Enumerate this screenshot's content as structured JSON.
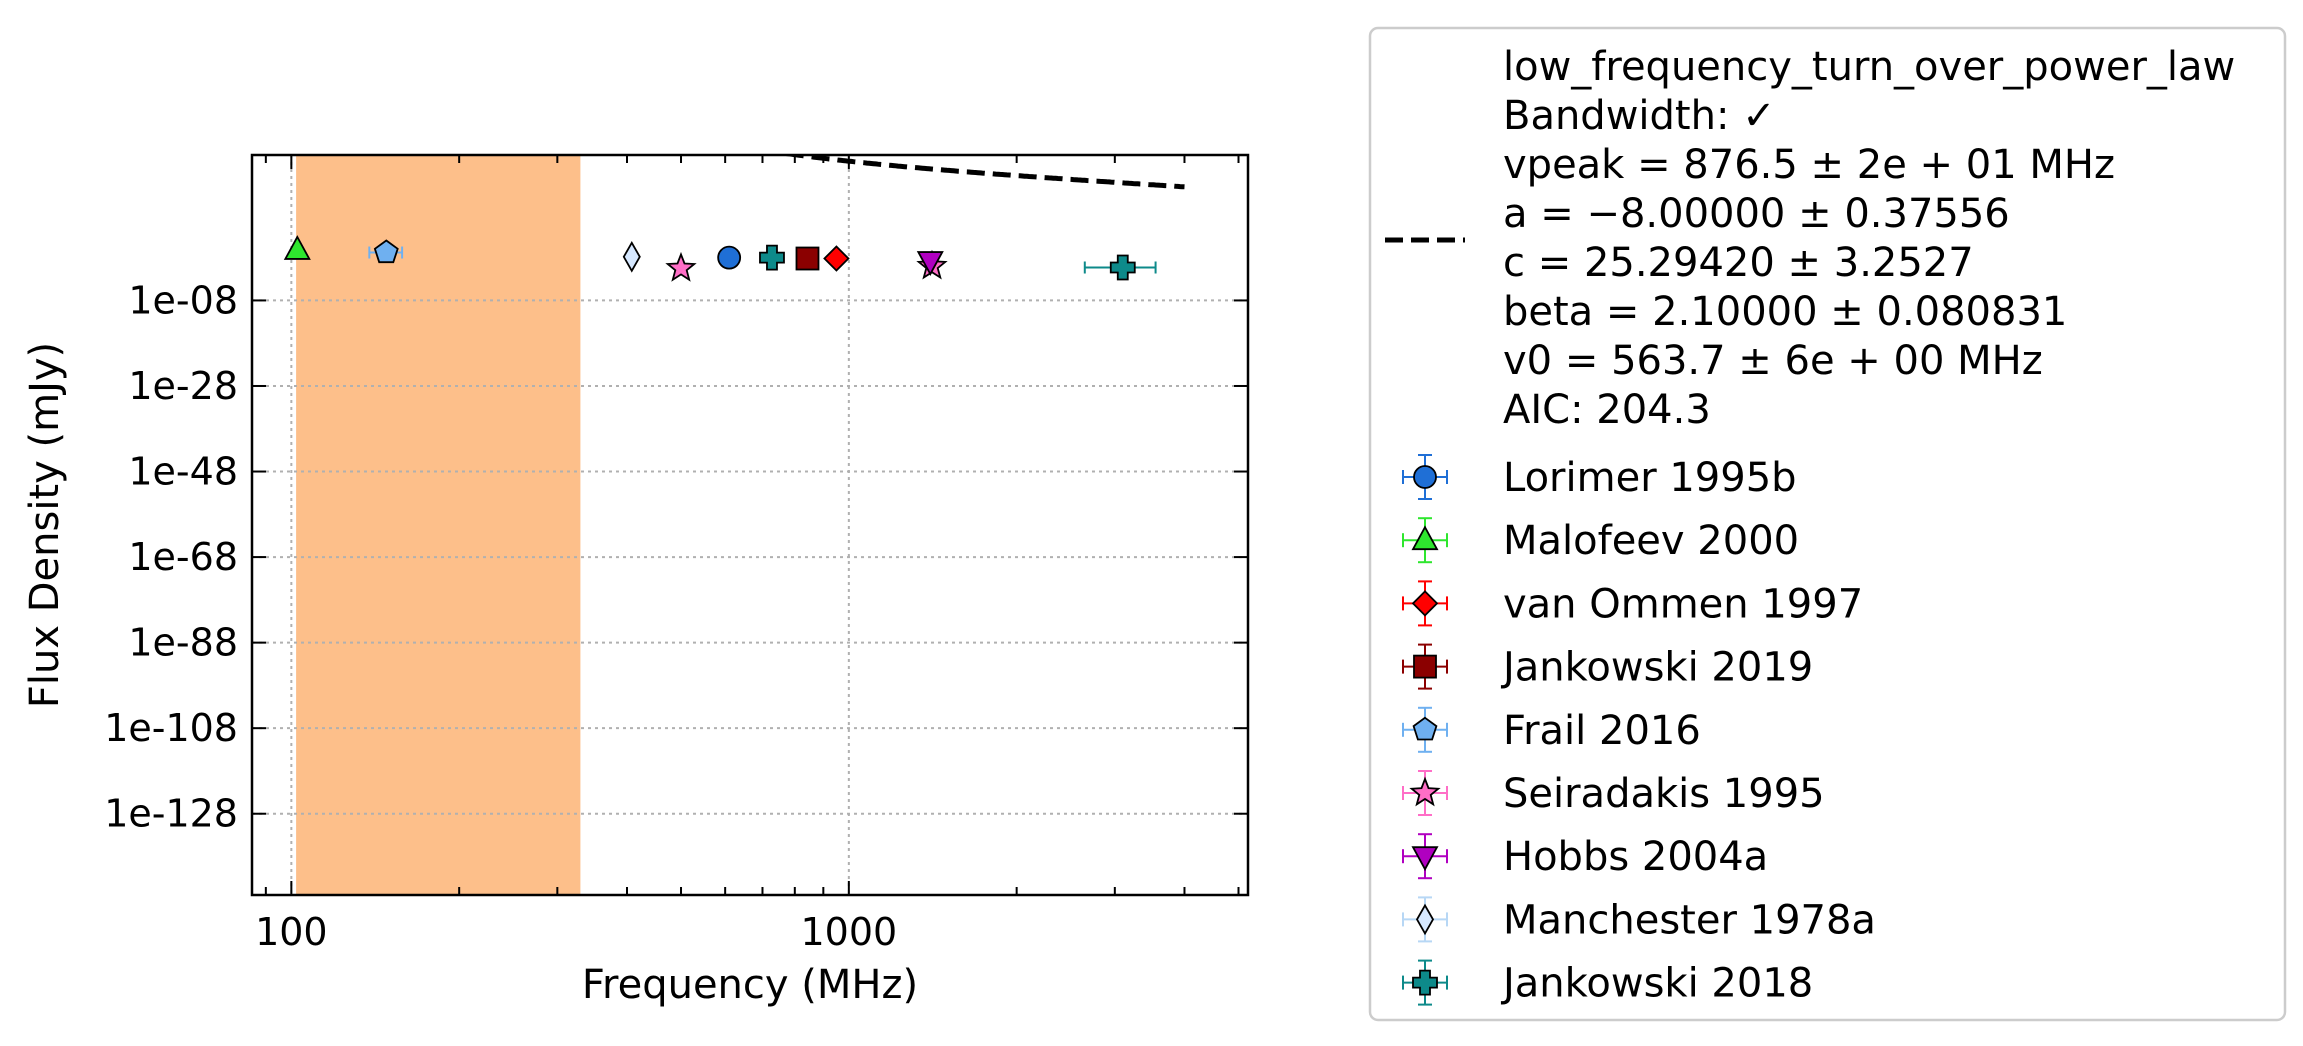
{
  "chart_data": {
    "type": "scatter",
    "xlabel": "Frequency (MHz)",
    "ylabel": "Flux Density (mJy)",
    "x_scale": "log",
    "y_scale": "log",
    "xlim": [
      85,
      5200
    ],
    "ylim_exp": [
      -147,
      26
    ],
    "grid": true,
    "legend_position": "outside-right",
    "x_ticks": [
      {
        "value": 100,
        "label": "100"
      },
      {
        "value": 1000,
        "label": "1000"
      }
    ],
    "y_ticks": [
      {
        "exp": -8,
        "label": "1e-08"
      },
      {
        "exp": -28,
        "label": "1e-28"
      },
      {
        "exp": -48,
        "label": "1e-48"
      },
      {
        "exp": -68,
        "label": "1e-68"
      },
      {
        "exp": -88,
        "label": "1e-88"
      },
      {
        "exp": -108,
        "label": "1e-108"
      },
      {
        "exp": -128,
        "label": "1e-128"
      }
    ],
    "fit": {
      "model": "low_frequency_turn_over_power_law",
      "label_lines": [
        "low_frequency_turn_over_power_law",
        "Bandwidth: ✓",
        "vpeak = 876.5 ± 2e + 01 MHz",
        "a = −8.00000 ± 0.37556",
        "c = 25.29420 ± 3.2527",
        "beta = 2.10000 ± 0.080831",
        "v0 = 563.7 ± 6e + 00 MHz",
        "AIC: 204.3"
      ],
      "params": {
        "vpeak": 876.5,
        "a": -8.0,
        "c": 25.2942,
        "beta": 2.1,
        "v0": 563.7
      },
      "x_range": [
        102,
        4000
      ],
      "color": "#000000",
      "shaded_range": [
        102,
        330
      ],
      "shade_color": "#fdbf8a"
    },
    "series": [
      {
        "name": "Lorimer 1995b",
        "marker": "circle",
        "color": "#1f6fd6",
        "ecolor": "#1f6fd6",
        "points": [
          {
            "x": 610,
            "log10y": 2.0,
            "xerr": 0
          }
        ]
      },
      {
        "name": "Malofeev 2000",
        "marker": "triangle-up",
        "color": "#2ee62e",
        "ecolor": "#2ee62e",
        "points": [
          {
            "x": 102.5,
            "log10y": 3.8,
            "xerr": 0
          }
        ]
      },
      {
        "name": "van Ommen 1997",
        "marker": "diamond",
        "color": "#ff0000",
        "ecolor": "#ff0000",
        "points": [
          {
            "x": 950,
            "log10y": 1.8,
            "xerr": 0
          }
        ]
      },
      {
        "name": "Jankowski 2019",
        "marker": "square",
        "color": "#8b0000",
        "ecolor": "#8b0000",
        "points": [
          {
            "x": 843,
            "log10y": 1.8,
            "xerr": 0
          }
        ]
      },
      {
        "name": "Frail 2016",
        "marker": "pentagon",
        "color": "#6fb0f0",
        "ecolor": "#6fb0f0",
        "points": [
          {
            "x": 148,
            "log10y": 3.2,
            "xerr": 10
          }
        ]
      },
      {
        "name": "Seiradakis 1995",
        "marker": "star",
        "color": "#ff6ec7",
        "ecolor": "#ff6ec7",
        "points": [
          {
            "x": 1410,
            "log10y": 0.0,
            "xerr": 0
          },
          {
            "x": 500,
            "log10y": -0.5,
            "xerr": 0
          }
        ]
      },
      {
        "name": "Hobbs 2004a",
        "marker": "triangle-down",
        "color": "#b000c0",
        "ecolor": "#b000c0",
        "points": [
          {
            "x": 1400,
            "log10y": 1.2,
            "xerr": 0
          }
        ]
      },
      {
        "name": "Manchester 1978a",
        "marker": "thin-diamond",
        "color": "#d6e8ff",
        "ecolor": "#b7d7f5",
        "points": [
          {
            "x": 408,
            "log10y": 2.2,
            "xerr": 0
          }
        ]
      },
      {
        "name": "Jankowski 2018",
        "marker": "plus",
        "color": "#0d8a8a",
        "ecolor": "#0d8a8a",
        "points": [
          {
            "x": 728,
            "log10y": 2.0,
            "xerr": 0
          },
          {
            "x": 3100,
            "log10y": -0.3,
            "xerr": 450
          }
        ]
      }
    ]
  }
}
